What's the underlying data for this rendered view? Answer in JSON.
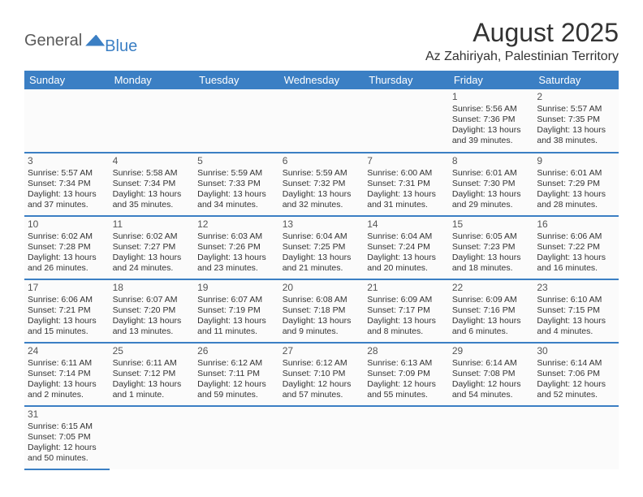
{
  "logo": {
    "part1": "General",
    "part2": "Blue"
  },
  "title": "August 2025",
  "location": "Az Zahiriyah, Palestinian Territory",
  "colors": {
    "header_bg": "#3b7fc4",
    "header_text": "#ffffff",
    "row_divider": "#3b7fc4",
    "cell_border": "#b8b8b8",
    "text": "#333333",
    "page_bg": "#ffffff"
  },
  "typography": {
    "title_fontsize": 32,
    "location_fontsize": 16,
    "dayheader_fontsize": 13,
    "cell_fontsize": 10.5
  },
  "day_headers": [
    "Sunday",
    "Monday",
    "Tuesday",
    "Wednesday",
    "Thursday",
    "Friday",
    "Saturday"
  ],
  "weeks": [
    [
      null,
      null,
      null,
      null,
      null,
      {
        "day": "1",
        "sunrise": "Sunrise: 5:56 AM",
        "sunset": "Sunset: 7:36 PM",
        "daylight": "Daylight: 13 hours and 39 minutes."
      },
      {
        "day": "2",
        "sunrise": "Sunrise: 5:57 AM",
        "sunset": "Sunset: 7:35 PM",
        "daylight": "Daylight: 13 hours and 38 minutes."
      }
    ],
    [
      {
        "day": "3",
        "sunrise": "Sunrise: 5:57 AM",
        "sunset": "Sunset: 7:34 PM",
        "daylight": "Daylight: 13 hours and 37 minutes."
      },
      {
        "day": "4",
        "sunrise": "Sunrise: 5:58 AM",
        "sunset": "Sunset: 7:34 PM",
        "daylight": "Daylight: 13 hours and 35 minutes."
      },
      {
        "day": "5",
        "sunrise": "Sunrise: 5:59 AM",
        "sunset": "Sunset: 7:33 PM",
        "daylight": "Daylight: 13 hours and 34 minutes."
      },
      {
        "day": "6",
        "sunrise": "Sunrise: 5:59 AM",
        "sunset": "Sunset: 7:32 PM",
        "daylight": "Daylight: 13 hours and 32 minutes."
      },
      {
        "day": "7",
        "sunrise": "Sunrise: 6:00 AM",
        "sunset": "Sunset: 7:31 PM",
        "daylight": "Daylight: 13 hours and 31 minutes."
      },
      {
        "day": "8",
        "sunrise": "Sunrise: 6:01 AM",
        "sunset": "Sunset: 7:30 PM",
        "daylight": "Daylight: 13 hours and 29 minutes."
      },
      {
        "day": "9",
        "sunrise": "Sunrise: 6:01 AM",
        "sunset": "Sunset: 7:29 PM",
        "daylight": "Daylight: 13 hours and 28 minutes."
      }
    ],
    [
      {
        "day": "10",
        "sunrise": "Sunrise: 6:02 AM",
        "sunset": "Sunset: 7:28 PM",
        "daylight": "Daylight: 13 hours and 26 minutes."
      },
      {
        "day": "11",
        "sunrise": "Sunrise: 6:02 AM",
        "sunset": "Sunset: 7:27 PM",
        "daylight": "Daylight: 13 hours and 24 minutes."
      },
      {
        "day": "12",
        "sunrise": "Sunrise: 6:03 AM",
        "sunset": "Sunset: 7:26 PM",
        "daylight": "Daylight: 13 hours and 23 minutes."
      },
      {
        "day": "13",
        "sunrise": "Sunrise: 6:04 AM",
        "sunset": "Sunset: 7:25 PM",
        "daylight": "Daylight: 13 hours and 21 minutes."
      },
      {
        "day": "14",
        "sunrise": "Sunrise: 6:04 AM",
        "sunset": "Sunset: 7:24 PM",
        "daylight": "Daylight: 13 hours and 20 minutes."
      },
      {
        "day": "15",
        "sunrise": "Sunrise: 6:05 AM",
        "sunset": "Sunset: 7:23 PM",
        "daylight": "Daylight: 13 hours and 18 minutes."
      },
      {
        "day": "16",
        "sunrise": "Sunrise: 6:06 AM",
        "sunset": "Sunset: 7:22 PM",
        "daylight": "Daylight: 13 hours and 16 minutes."
      }
    ],
    [
      {
        "day": "17",
        "sunrise": "Sunrise: 6:06 AM",
        "sunset": "Sunset: 7:21 PM",
        "daylight": "Daylight: 13 hours and 15 minutes."
      },
      {
        "day": "18",
        "sunrise": "Sunrise: 6:07 AM",
        "sunset": "Sunset: 7:20 PM",
        "daylight": "Daylight: 13 hours and 13 minutes."
      },
      {
        "day": "19",
        "sunrise": "Sunrise: 6:07 AM",
        "sunset": "Sunset: 7:19 PM",
        "daylight": "Daylight: 13 hours and 11 minutes."
      },
      {
        "day": "20",
        "sunrise": "Sunrise: 6:08 AM",
        "sunset": "Sunset: 7:18 PM",
        "daylight": "Daylight: 13 hours and 9 minutes."
      },
      {
        "day": "21",
        "sunrise": "Sunrise: 6:09 AM",
        "sunset": "Sunset: 7:17 PM",
        "daylight": "Daylight: 13 hours and 8 minutes."
      },
      {
        "day": "22",
        "sunrise": "Sunrise: 6:09 AM",
        "sunset": "Sunset: 7:16 PM",
        "daylight": "Daylight: 13 hours and 6 minutes."
      },
      {
        "day": "23",
        "sunrise": "Sunrise: 6:10 AM",
        "sunset": "Sunset: 7:15 PM",
        "daylight": "Daylight: 13 hours and 4 minutes."
      }
    ],
    [
      {
        "day": "24",
        "sunrise": "Sunrise: 6:11 AM",
        "sunset": "Sunset: 7:14 PM",
        "daylight": "Daylight: 13 hours and 2 minutes."
      },
      {
        "day": "25",
        "sunrise": "Sunrise: 6:11 AM",
        "sunset": "Sunset: 7:12 PM",
        "daylight": "Daylight: 13 hours and 1 minute."
      },
      {
        "day": "26",
        "sunrise": "Sunrise: 6:12 AM",
        "sunset": "Sunset: 7:11 PM",
        "daylight": "Daylight: 12 hours and 59 minutes."
      },
      {
        "day": "27",
        "sunrise": "Sunrise: 6:12 AM",
        "sunset": "Sunset: 7:10 PM",
        "daylight": "Daylight: 12 hours and 57 minutes."
      },
      {
        "day": "28",
        "sunrise": "Sunrise: 6:13 AM",
        "sunset": "Sunset: 7:09 PM",
        "daylight": "Daylight: 12 hours and 55 minutes."
      },
      {
        "day": "29",
        "sunrise": "Sunrise: 6:14 AM",
        "sunset": "Sunset: 7:08 PM",
        "daylight": "Daylight: 12 hours and 54 minutes."
      },
      {
        "day": "30",
        "sunrise": "Sunrise: 6:14 AM",
        "sunset": "Sunset: 7:06 PM",
        "daylight": "Daylight: 12 hours and 52 minutes."
      }
    ],
    [
      {
        "day": "31",
        "sunrise": "Sunrise: 6:15 AM",
        "sunset": "Sunset: 7:05 PM",
        "daylight": "Daylight: 12 hours and 50 minutes."
      },
      null,
      null,
      null,
      null,
      null,
      null
    ]
  ]
}
